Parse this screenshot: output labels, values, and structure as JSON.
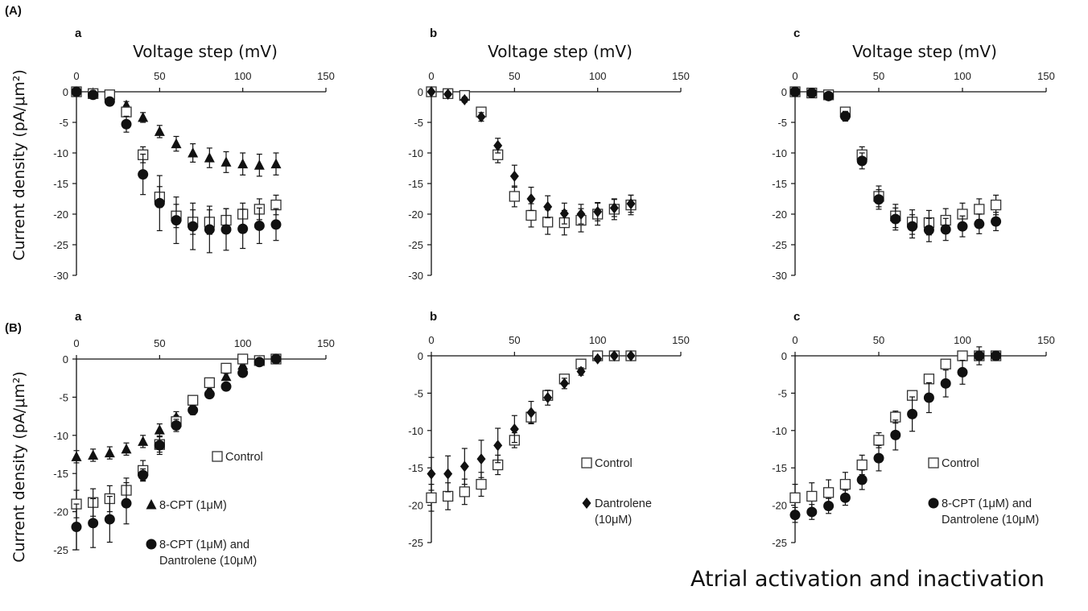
{
  "section_labels": [
    "(A)",
    "(B)"
  ],
  "y_axis_title": "Current density (pA/μm²)",
  "caption": "Atrial activation and inactivation",
  "chart_data": [
    {
      "id": "A-a",
      "panel_label": "a",
      "type": "scatter",
      "xlabel": "Voltage step (mV)",
      "xlim": [
        0,
        150
      ],
      "ylim": [
        -30,
        0
      ],
      "xticks": [
        "0",
        "50",
        "100",
        "150"
      ],
      "yticks": [
        "0",
        "-5",
        "-10",
        "-15",
        "-20",
        "-25",
        "-30"
      ],
      "legend": [],
      "series": [
        {
          "marker": "triangle",
          "x": [
            0,
            10,
            20,
            30,
            40,
            50,
            60,
            70,
            80,
            90,
            100,
            110,
            120
          ],
          "y": [
            0,
            -0.2,
            -1,
            -2.2,
            -4.2,
            -6.5,
            -8.5,
            -10,
            -10.8,
            -11.5,
            -11.8,
            -12,
            -11.8
          ],
          "err": [
            0.2,
            0.3,
            0.4,
            0.6,
            0.8,
            1,
            1.2,
            1.5,
            1.6,
            1.7,
            1.8,
            1.8,
            1.8
          ]
        },
        {
          "marker": "square",
          "x": [
            0,
            10,
            20,
            30,
            40,
            50,
            60,
            70,
            80,
            90,
            100,
            110,
            120
          ],
          "y": [
            0,
            -0.3,
            -0.5,
            -3.3,
            -10.3,
            -17.2,
            -20.3,
            -21.3,
            -21.3,
            -21,
            -20,
            -19.2,
            -18.5
          ],
          "err": [
            0.2,
            0.3,
            0.4,
            0.7,
            1.3,
            1.7,
            1.9,
            2,
            2,
            1.9,
            1.8,
            1.7,
            1.6
          ]
        },
        {
          "marker": "circle",
          "x": [
            0,
            10,
            20,
            30,
            40,
            50,
            60,
            70,
            80,
            90,
            100,
            110,
            120
          ],
          "y": [
            0,
            -0.5,
            -1.6,
            -5.3,
            -13.5,
            -18.2,
            -21,
            -22,
            -22.5,
            -22.5,
            -22.4,
            -21.9,
            -21.7
          ],
          "err": [
            0.2,
            0.3,
            0.5,
            1.3,
            3.3,
            4.5,
            3.8,
            3.8,
            3.8,
            3.4,
            3.2,
            2.9,
            2.6
          ]
        }
      ]
    },
    {
      "id": "A-b",
      "panel_label": "b",
      "type": "scatter",
      "xlabel": "Voltage step (mV)",
      "xlim": [
        0,
        150
      ],
      "ylim": [
        -30,
        0
      ],
      "xticks": [
        "0",
        "50",
        "100",
        "150"
      ],
      "yticks": [
        "0",
        "-5",
        "-10",
        "-15",
        "-20",
        "-25",
        "-30"
      ],
      "legend": [],
      "series": [
        {
          "marker": "square",
          "x": [
            0,
            10,
            20,
            30,
            40,
            50,
            60,
            70,
            80,
            90,
            100,
            110,
            120
          ],
          "y": [
            0,
            -0.3,
            -0.6,
            -3.3,
            -10.3,
            -17.1,
            -20.2,
            -21.3,
            -21.4,
            -21,
            -20,
            -19.2,
            -18.5
          ],
          "err": [
            0.2,
            0.3,
            0.4,
            0.7,
            1.3,
            1.7,
            1.9,
            2,
            2,
            1.9,
            1.8,
            1.7,
            1.6
          ]
        },
        {
          "marker": "diamond",
          "x": [
            0,
            10,
            20,
            30,
            40,
            50,
            60,
            70,
            80,
            90,
            100,
            110,
            120
          ],
          "y": [
            0,
            -0.4,
            -1.3,
            -4.1,
            -8.8,
            -13.8,
            -17.5,
            -18.8,
            -19.9,
            -20,
            -19.6,
            -19,
            -18.3
          ],
          "err": [
            0.2,
            0.3,
            0.4,
            0.7,
            1.2,
            1.8,
            1.9,
            1.8,
            1.7,
            1.6,
            1.5,
            1.4,
            1.4
          ]
        }
      ]
    },
    {
      "id": "A-c",
      "panel_label": "c",
      "type": "scatter",
      "xlabel": "Voltage step (mV)",
      "xlim": [
        0,
        150
      ],
      "ylim": [
        -30,
        0
      ],
      "xticks": [
        "0",
        "50",
        "100",
        "150"
      ],
      "yticks": [
        "0",
        "-5",
        "-10",
        "-15",
        "-20",
        "-25",
        "-30"
      ],
      "legend": [],
      "series": [
        {
          "marker": "square",
          "x": [
            0,
            10,
            20,
            30,
            40,
            50,
            60,
            70,
            80,
            90,
            100,
            110,
            120
          ],
          "y": [
            0,
            -0.2,
            -0.5,
            -3.3,
            -10.3,
            -17.1,
            -20.3,
            -21.3,
            -21.4,
            -21,
            -20,
            -19.2,
            -18.5
          ],
          "err": [
            0.2,
            0.3,
            0.4,
            0.7,
            1.3,
            1.7,
            1.9,
            2,
            2,
            1.9,
            1.8,
            1.7,
            1.6
          ]
        },
        {
          "marker": "circle",
          "x": [
            0,
            10,
            20,
            30,
            40,
            50,
            60,
            70,
            80,
            90,
            100,
            110,
            120
          ],
          "y": [
            0,
            -0.2,
            -0.7,
            -4,
            -11.3,
            -17.6,
            -20.8,
            -22,
            -22.6,
            -22.5,
            -22,
            -21.6,
            -21.2
          ],
          "err": [
            0.2,
            0.3,
            0.4,
            0.8,
            1.3,
            1.6,
            1.8,
            1.9,
            1.9,
            1.8,
            1.7,
            1.6,
            1.5
          ]
        }
      ]
    },
    {
      "id": "B-a",
      "panel_label": "a",
      "type": "scatter",
      "xlabel": "",
      "xlim": [
        0,
        150
      ],
      "ylim": [
        -25,
        0
      ],
      "xticks": [
        "0",
        "50",
        "100",
        "150"
      ],
      "yticks": [
        "0",
        "-5",
        "-10",
        "-15",
        "-20",
        "-25"
      ],
      "legend": [
        {
          "marker": "square",
          "text": [
            "Control"
          ]
        },
        {
          "marker": "triangle",
          "text": [
            "8-CPT (1μM)"
          ]
        },
        {
          "marker": "circle",
          "text": [
            "8-CPT (1μM) and",
            "Dantrolene (10μM)"
          ]
        }
      ],
      "series": [
        {
          "marker": "triangle",
          "x": [
            0,
            10,
            20,
            30,
            40,
            50,
            60,
            70,
            80,
            90,
            100,
            110,
            120
          ],
          "y": [
            -12.8,
            -12.6,
            -12.3,
            -11.8,
            -10.8,
            -9.3,
            -7.6,
            -5.5,
            -4,
            -2.3,
            -0.8,
            -0.2,
            0
          ],
          "err": [
            0.8,
            0.8,
            0.8,
            0.8,
            0.8,
            0.8,
            0.7,
            0.6,
            0.5,
            0.4,
            0.3,
            0.2,
            0.1
          ]
        },
        {
          "marker": "square",
          "x": [
            0,
            10,
            20,
            30,
            40,
            50,
            60,
            70,
            80,
            90,
            100,
            110,
            120
          ],
          "y": [
            -19,
            -18.8,
            -18.3,
            -17.2,
            -14.6,
            -11.2,
            -8.2,
            -5.4,
            -3.1,
            -1.2,
            0,
            -0.2,
            0
          ],
          "err": [
            1.8,
            1.8,
            1.7,
            1.6,
            1.3,
            1,
            0.8,
            0.6,
            0.5,
            0.4,
            0.3,
            0.2,
            0.1
          ]
        },
        {
          "marker": "circle",
          "x": [
            0,
            10,
            20,
            30,
            40,
            50,
            60,
            70,
            80,
            90,
            100,
            110,
            120
          ],
          "y": [
            -22,
            -21.5,
            -21,
            -18.9,
            -15.2,
            -11.3,
            -8.7,
            -6.7,
            -4.6,
            -3.6,
            -1.8,
            -0.4,
            0
          ],
          "err": [
            3,
            3.2,
            3,
            2.7,
            0.8,
            1.2,
            0.8,
            0.6,
            0.5,
            0.4,
            0.4,
            0.3,
            0.1
          ]
        }
      ]
    },
    {
      "id": "B-b",
      "panel_label": "b",
      "type": "scatter",
      "xlabel": "",
      "xlim": [
        0,
        150
      ],
      "ylim": [
        -25,
        0
      ],
      "xticks": [
        "0",
        "50",
        "100",
        "150"
      ],
      "yticks": [
        "0",
        "-5",
        "-10",
        "-15",
        "-20",
        "-25"
      ],
      "legend": [
        {
          "marker": "square",
          "text": [
            "Control"
          ]
        },
        {
          "marker": "diamond",
          "text": [
            "Dantrolene",
            "(10μM)"
          ]
        }
      ],
      "series": [
        {
          "marker": "square",
          "x": [
            0,
            10,
            20,
            30,
            40,
            50,
            60,
            70,
            80,
            90,
            100,
            110,
            120
          ],
          "y": [
            -19,
            -18.8,
            -18.2,
            -17.2,
            -14.6,
            -11.3,
            -8.2,
            -5.3,
            -3.1,
            -1.1,
            0,
            0,
            0
          ],
          "err": [
            1.8,
            1.8,
            1.7,
            1.6,
            1.3,
            1,
            0.8,
            0.6,
            0.5,
            0.4,
            0.3,
            0.2,
            0.1
          ]
        },
        {
          "marker": "diamond",
          "x": [
            0,
            10,
            20,
            30,
            40,
            50,
            60,
            70,
            80,
            90,
            100,
            110,
            120
          ],
          "y": [
            -15.8,
            -15.8,
            -14.8,
            -13.8,
            -12,
            -9.8,
            -7.6,
            -5.6,
            -3.7,
            -2.1,
            -0.4,
            0,
            0
          ],
          "err": [
            2.2,
            2.4,
            2.4,
            2.5,
            2.3,
            1.8,
            1.5,
            1,
            0.7,
            0.5,
            0.3,
            0.2,
            0.1
          ]
        }
      ]
    },
    {
      "id": "B-c",
      "panel_label": "c",
      "type": "scatter",
      "xlabel": "",
      "xlim": [
        0,
        150
      ],
      "ylim": [
        -25,
        0
      ],
      "xticks": [
        "0",
        "50",
        "100",
        "150"
      ],
      "yticks": [
        "0",
        "-5",
        "-10",
        "-15",
        "-20",
        "-25"
      ],
      "legend": [
        {
          "marker": "square",
          "text": [
            "Control"
          ]
        },
        {
          "marker": "circle",
          "text": [
            "8-CPT (1μM) and",
            "Dantrolene (10μM)"
          ]
        }
      ],
      "series": [
        {
          "marker": "square",
          "x": [
            0,
            10,
            20,
            30,
            40,
            50,
            60,
            70,
            80,
            90,
            100,
            110,
            120
          ],
          "y": [
            -19,
            -18.8,
            -18.3,
            -17.2,
            -14.6,
            -11.3,
            -8.2,
            -5.3,
            -3.1,
            -1.1,
            0,
            0,
            0
          ],
          "err": [
            1.8,
            1.8,
            1.7,
            1.6,
            1.3,
            1,
            0.8,
            0.6,
            0.5,
            0.4,
            0.3,
            0.2,
            0.1
          ]
        },
        {
          "marker": "circle",
          "x": [
            0,
            10,
            20,
            30,
            40,
            50,
            60,
            70,
            80,
            90,
            100,
            110,
            120
          ],
          "y": [
            -21.3,
            -20.9,
            -20.1,
            -19,
            -16.6,
            -13.7,
            -10.6,
            -7.8,
            -5.6,
            -3.7,
            -2.2,
            0,
            0
          ],
          "err": [
            1,
            1,
            1,
            1,
            1.3,
            1.7,
            2,
            2.3,
            2,
            1.8,
            1.6,
            1.2,
            0.5
          ]
        }
      ]
    }
  ]
}
